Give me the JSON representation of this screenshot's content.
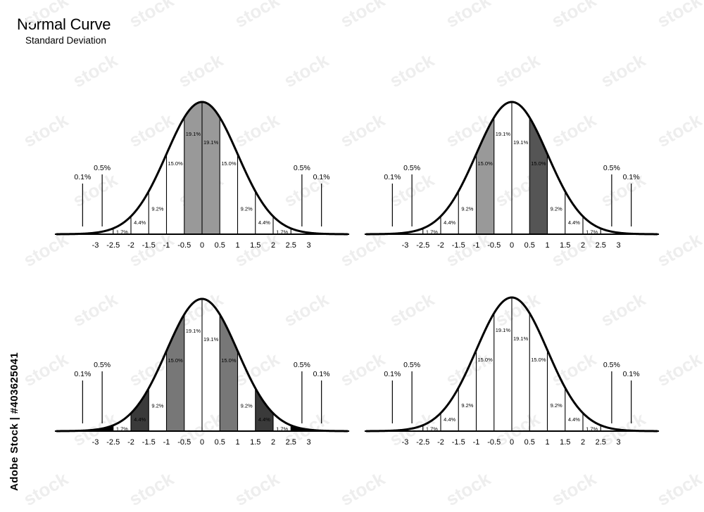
{
  "header": {
    "title": "Normal Curve",
    "subtitle": "Standard Deviation"
  },
  "watermark": {
    "stock_text": "Adobe Stock | #403625041",
    "repeated_text": "stock"
  },
  "colors": {
    "line": "#000000",
    "light_gray": "#999999",
    "mid_gray": "#777777",
    "dark_gray": "#555555",
    "darker_gray": "#3a3a3a",
    "black": "#000000",
    "white": "#ffffff"
  },
  "chart_data": [
    {
      "type": "area",
      "panel": "top-left",
      "x_ticks": [
        "-3",
        "-2.5",
        "-2",
        "-1.5",
        "-1",
        "-0.5",
        "0",
        "0.5",
        "1",
        "1.5",
        "2",
        "2.5",
        "3"
      ],
      "x_tick_values": [
        -3,
        -2.5,
        -2,
        -1.5,
        -1,
        -0.5,
        0,
        0.5,
        1,
        1.5,
        2,
        2.5,
        3
      ],
      "region_labels": [
        {
          "from": -2.5,
          "to": -2,
          "label": "1.7%"
        },
        {
          "from": -2,
          "to": -1.5,
          "label": "4.4%"
        },
        {
          "from": -1.5,
          "to": -1,
          "label": "9.2%"
        },
        {
          "from": -1,
          "to": -0.5,
          "label": "15.0%"
        },
        {
          "from": -0.5,
          "to": 0,
          "label": "19.1%"
        },
        {
          "from": 0,
          "to": 0.5,
          "label": "19.1%"
        },
        {
          "from": 0.5,
          "to": 1,
          "label": "15.0%"
        },
        {
          "from": 1,
          "to": 1.5,
          "label": "9.2%"
        },
        {
          "from": 1.5,
          "to": 2,
          "label": "4.4%"
        },
        {
          "from": 2,
          "to": 2.5,
          "label": "1.7%"
        }
      ],
      "tail_labels": [
        {
          "at": -3.3,
          "label": "0.1%"
        },
        {
          "at": -2.75,
          "label": "0.5%"
        },
        {
          "at": 2.75,
          "label": "0.5%"
        },
        {
          "at": 3.3,
          "label": "0.1%"
        }
      ],
      "shaded": [
        {
          "from": -0.5,
          "to": 0.5,
          "color": "#999999"
        }
      ]
    },
    {
      "type": "area",
      "panel": "top-right",
      "x_ticks": [
        "-3",
        "-2.5",
        "-2",
        "-1.5",
        "-1",
        "-0.5",
        "0",
        "0.5",
        "1",
        "1.5",
        "2",
        "2.5",
        "3"
      ],
      "x_tick_values": [
        -3,
        -2.5,
        -2,
        -1.5,
        -1,
        -0.5,
        0,
        0.5,
        1,
        1.5,
        2,
        2.5,
        3
      ],
      "region_labels": [
        {
          "from": -2.5,
          "to": -2,
          "label": "1.7%"
        },
        {
          "from": -2,
          "to": -1.5,
          "label": "4.4%"
        },
        {
          "from": -1.5,
          "to": -1,
          "label": "9.2%"
        },
        {
          "from": -1,
          "to": -0.5,
          "label": "15.0%"
        },
        {
          "from": -0.5,
          "to": 0,
          "label": "19.1%"
        },
        {
          "from": 0,
          "to": 0.5,
          "label": "19.1%"
        },
        {
          "from": 0.5,
          "to": 1,
          "label": "15.0%"
        },
        {
          "from": 1,
          "to": 1.5,
          "label": "9.2%"
        },
        {
          "from": 1.5,
          "to": 2,
          "label": "4.4%"
        },
        {
          "from": 2,
          "to": 2.5,
          "label": "1.7%"
        }
      ],
      "tail_labels": [
        {
          "at": -3.3,
          "label": "0.1%"
        },
        {
          "at": -2.75,
          "label": "0.5%"
        },
        {
          "at": 2.75,
          "label": "0.5%"
        },
        {
          "at": 3.3,
          "label": "0.1%"
        }
      ],
      "shaded": [
        {
          "from": -1,
          "to": -0.5,
          "color": "#999999"
        },
        {
          "from": 0.5,
          "to": 1,
          "color": "#555555"
        }
      ]
    },
    {
      "type": "area",
      "panel": "bottom-left",
      "x_ticks": [
        "-3",
        "-2.5",
        "-2",
        "-1.5",
        "-1",
        "-0.5",
        "0",
        "0.5",
        "1",
        "1.5",
        "2",
        "2.5",
        "3"
      ],
      "x_tick_values": [
        -3,
        -2.5,
        -2,
        -1.5,
        -1,
        -0.5,
        0,
        0.5,
        1,
        1.5,
        2,
        2.5,
        3
      ],
      "region_labels": [
        {
          "from": -2.5,
          "to": -2,
          "label": "1.7%"
        },
        {
          "from": -2,
          "to": -1.5,
          "label": "4.4%"
        },
        {
          "from": -1.5,
          "to": -1,
          "label": "9.2%"
        },
        {
          "from": -1,
          "to": -0.5,
          "label": "15.0%"
        },
        {
          "from": -0.5,
          "to": 0,
          "label": "19.1%"
        },
        {
          "from": 0,
          "to": 0.5,
          "label": "19.1%"
        },
        {
          "from": 0.5,
          "to": 1,
          "label": "15.0%"
        },
        {
          "from": 1,
          "to": 1.5,
          "label": "9.2%"
        },
        {
          "from": 1.5,
          "to": 2,
          "label": "4.4%"
        },
        {
          "from": 2,
          "to": 2.5,
          "label": "1.7%"
        }
      ],
      "tail_labels": [
        {
          "at": -3.3,
          "label": "0.1%"
        },
        {
          "at": -2.75,
          "label": "0.5%"
        },
        {
          "at": 2.75,
          "label": "0.5%"
        },
        {
          "at": 3.3,
          "label": "0.1%"
        }
      ],
      "shaded": [
        {
          "from": -3,
          "to": -2.5,
          "color": "#000000"
        },
        {
          "from": -2,
          "to": -1.5,
          "color": "#3a3a3a"
        },
        {
          "from": -1,
          "to": -0.5,
          "color": "#777777"
        },
        {
          "from": 0.5,
          "to": 1,
          "color": "#777777"
        },
        {
          "from": 1.5,
          "to": 2,
          "color": "#3a3a3a"
        },
        {
          "from": 2.5,
          "to": 3,
          "color": "#000000"
        }
      ]
    },
    {
      "type": "area",
      "panel": "bottom-right",
      "x_ticks": [
        "-3",
        "-2.5",
        "-2",
        "-1.5",
        "-1",
        "-0.5",
        "0",
        "0.5",
        "1",
        "1.5",
        "2",
        "2.5",
        "3"
      ],
      "x_tick_values": [
        -3,
        -2.5,
        -2,
        -1.5,
        -1,
        -0.5,
        0,
        0.5,
        1,
        1.5,
        2,
        2.5,
        3
      ],
      "region_labels": [
        {
          "from": -2.5,
          "to": -2,
          "label": "1.7%"
        },
        {
          "from": -2,
          "to": -1.5,
          "label": "4.4%"
        },
        {
          "from": -1.5,
          "to": -1,
          "label": "9.2%"
        },
        {
          "from": -1,
          "to": -0.5,
          "label": "15.0%"
        },
        {
          "from": -0.5,
          "to": 0,
          "label": "19.1%"
        },
        {
          "from": 0,
          "to": 0.5,
          "label": "19.1%"
        },
        {
          "from": 0.5,
          "to": 1,
          "label": "15.0%"
        },
        {
          "from": 1,
          "to": 1.5,
          "label": "9.2%"
        },
        {
          "from": 1.5,
          "to": 2,
          "label": "4.4%"
        },
        {
          "from": 2,
          "to": 2.5,
          "label": "1.7%"
        }
      ],
      "tail_labels": [
        {
          "at": -3.3,
          "label": "0.1%"
        },
        {
          "at": -2.75,
          "label": "0.5%"
        },
        {
          "at": 2.75,
          "label": "0.5%"
        },
        {
          "at": 3.3,
          "label": "0.1%"
        }
      ],
      "shaded": []
    }
  ]
}
